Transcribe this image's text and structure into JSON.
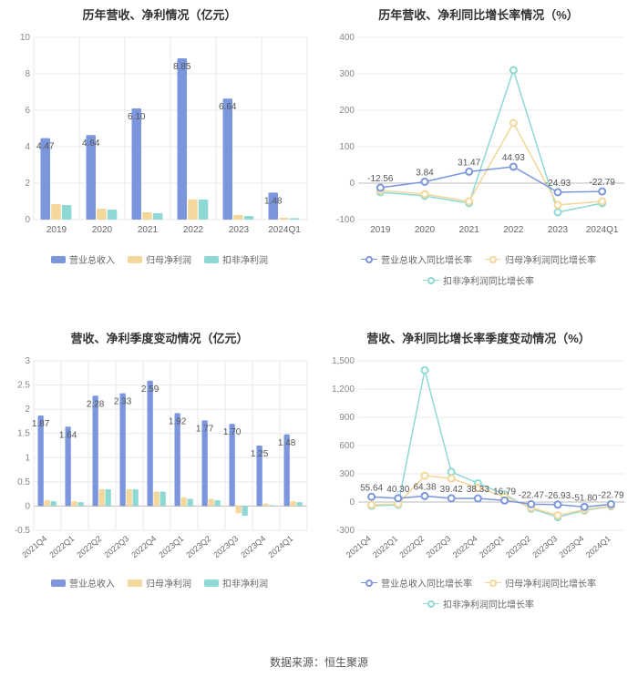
{
  "colors": {
    "revenue": "#7b96dc",
    "netprofit": "#f4d79a",
    "nonrecurring": "#8fd9d5",
    "grid": "#e8e8e8",
    "axis_text": "#888",
    "label_text": "#555"
  },
  "source_label": "数据来源：恒生聚源",
  "chart_tl": {
    "title": "历年营收、净利情况（亿元）",
    "categories": [
      "2019",
      "2020",
      "2021",
      "2022",
      "2023",
      "2024Q1"
    ],
    "ylim": [
      0,
      10
    ],
    "ytick_step": 2,
    "series": [
      {
        "key": "revenue",
        "label": "营业总收入",
        "color": "#7b96dc",
        "values": [
          4.47,
          4.64,
          6.1,
          8.85,
          6.64,
          1.48
        ],
        "show_label": true
      },
      {
        "key": "netprofit",
        "label": "归母净利润",
        "color": "#f4d79a",
        "values": [
          0.85,
          0.6,
          0.4,
          1.1,
          0.25,
          0.1
        ],
        "show_label": false
      },
      {
        "key": "nonrecurring",
        "label": "扣非净利润",
        "color": "#8fd9d5",
        "values": [
          0.8,
          0.55,
          0.35,
          1.1,
          0.2,
          0.08
        ],
        "show_label": false
      }
    ]
  },
  "chart_tr": {
    "title": "历年营收、净利同比增长率情况（%）",
    "categories": [
      "2019",
      "2020",
      "2021",
      "2022",
      "2023",
      "2024Q1"
    ],
    "ylim": [
      -100,
      400
    ],
    "ytick_step": 100,
    "label_series_index": 0,
    "series": [
      {
        "key": "revenue",
        "label": "营业总收入同比增长率",
        "color": "#7b96dc",
        "values": [
          -12.56,
          3.84,
          31.47,
          44.93,
          -24.93,
          -22.79
        ]
      },
      {
        "key": "netprofit",
        "label": "归母净利润同比增长率",
        "color": "#f4d79a",
        "values": [
          -20,
          -30,
          -50,
          165,
          -60,
          -50
        ]
      },
      {
        "key": "nonrecurring",
        "label": "扣非净利润同比增长率",
        "color": "#8fd9d5",
        "values": [
          -25,
          -35,
          -55,
          310,
          -80,
          -55
        ]
      }
    ]
  },
  "chart_bl": {
    "title": "营收、净利季度变动情况（亿元）",
    "categories": [
      "2021Q4",
      "2022Q1",
      "2022Q2",
      "2022Q3",
      "2022Q4",
      "2023Q1",
      "2023Q2",
      "2023Q3",
      "2023Q4",
      "2024Q1"
    ],
    "ylim": [
      -0.5,
      3
    ],
    "ytick_step": 0.5,
    "series": [
      {
        "key": "revenue",
        "label": "营业总收入",
        "color": "#7b96dc",
        "values": [
          1.87,
          1.64,
          2.28,
          2.33,
          2.59,
          1.92,
          1.77,
          1.7,
          1.25,
          1.48
        ],
        "show_label": true
      },
      {
        "key": "netprofit",
        "label": "归母净利润",
        "color": "#f4d79a",
        "values": [
          0.12,
          0.1,
          0.35,
          0.35,
          0.3,
          0.18,
          0.15,
          -0.15,
          0.05,
          0.1
        ],
        "show_label": false
      },
      {
        "key": "nonrecurring",
        "label": "扣非净利润",
        "color": "#8fd9d5",
        "values": [
          0.1,
          0.08,
          0.35,
          0.35,
          0.3,
          0.15,
          0.12,
          -0.2,
          0.02,
          0.08
        ],
        "show_label": false
      }
    ]
  },
  "chart_br": {
    "title": "营收、净利同比增长率季度变动情况（%）",
    "categories": [
      "2021Q4",
      "2022Q1",
      "2022Q2",
      "2022Q3",
      "2022Q4",
      "2023Q1",
      "2023Q2",
      "2023Q3",
      "2023Q4",
      "2024Q1"
    ],
    "ylim": [
      -300,
      1500
    ],
    "ytick_step": 300,
    "label_series_index": 0,
    "series": [
      {
        "key": "revenue",
        "label": "营业总收入同比增长率",
        "color": "#7b96dc",
        "values": [
          55.64,
          40.3,
          64.38,
          39.42,
          38.33,
          16.79,
          -22.47,
          -26.93,
          -51.8,
          -22.79
        ]
      },
      {
        "key": "netprofit",
        "label": "归母净利润同比增长率",
        "color": "#f4d79a",
        "values": [
          -30,
          -20,
          280,
          250,
          150,
          60,
          -60,
          -140,
          -80,
          -40
        ]
      },
      {
        "key": "nonrecurring",
        "label": "扣非净利润同比增长率",
        "color": "#8fd9d5",
        "values": [
          -40,
          -30,
          1400,
          320,
          200,
          80,
          -70,
          -160,
          -90,
          -45
        ]
      }
    ]
  }
}
